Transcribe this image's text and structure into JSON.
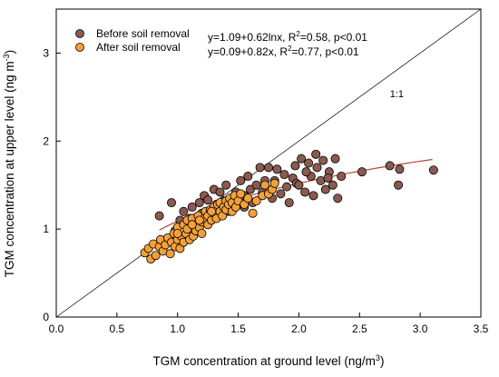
{
  "chart_data": {
    "type": "scatter",
    "xlabel": "TGM concentration at ground level (ng/m",
    "xlabel_sup": "3",
    "xlabel_tail": ")",
    "ylabel": "TGM concentration at upper level (ng m",
    "ylabel_sup": "-3",
    "ylabel_tail": ")",
    "xlim": [
      0,
      3.5
    ],
    "ylim": [
      0,
      3.5
    ],
    "x_ticks": [
      0,
      0.5,
      1,
      1.5,
      2,
      2.5,
      3,
      3.5
    ],
    "x_tick_labels": [
      "0.0",
      "0.5",
      "1.0",
      "1.5",
      "2.0",
      "2.5",
      "3.0",
      "3.5"
    ],
    "y_ticks": [
      0,
      1,
      2,
      3
    ],
    "y_tick_labels": [
      "0",
      "1",
      "2",
      "3"
    ],
    "grid": false,
    "legend_position": "top-left",
    "reference_line": {
      "label": "1:1",
      "label_x": 2.75,
      "label_y": 2.5
    },
    "series": [
      {
        "name": "Before soil removal",
        "color": "#8b5a4f",
        "equation": "y=1.09+0.62lnx,  R",
        "r2_sup": "2",
        "stats": "=0.58, p<0.01",
        "fit": {
          "type": "log",
          "a": 1.09,
          "b": 0.62,
          "x_range": [
            0.85,
            3.1
          ]
        },
        "points": [
          [
            0.85,
            1.15
          ],
          [
            0.95,
            1.3
          ],
          [
            0.98,
            0.98
          ],
          [
            1.02,
            1.1
          ],
          [
            1.05,
            1.2
          ],
          [
            1.08,
            1.05
          ],
          [
            1.1,
            1.12
          ],
          [
            1.12,
            1.25
          ],
          [
            1.15,
            1.1
          ],
          [
            1.18,
            1.3
          ],
          [
            1.2,
            1.18
          ],
          [
            1.22,
            1.38
          ],
          [
            1.25,
            1.1
          ],
          [
            1.28,
            1.22
          ],
          [
            1.3,
            1.45
          ],
          [
            1.32,
            1.28
          ],
          [
            1.35,
            1.15
          ],
          [
            1.38,
            1.32
          ],
          [
            1.4,
            1.5
          ],
          [
            1.42,
            1.2
          ],
          [
            1.45,
            1.35
          ],
          [
            1.48,
            1.42
          ],
          [
            1.5,
            1.28
          ],
          [
            1.52,
            1.55
          ],
          [
            1.55,
            1.38
          ],
          [
            1.58,
            1.6
          ],
          [
            1.6,
            1.45
          ],
          [
            1.62,
            1.3
          ],
          [
            1.65,
            1.5
          ],
          [
            1.7,
            1.42
          ],
          [
            1.75,
            1.7
          ],
          [
            1.78,
            1.35
          ],
          [
            1.8,
            1.55
          ],
          [
            1.82,
            1.68
          ],
          [
            1.85,
            1.4
          ],
          [
            1.88,
            1.62
          ],
          [
            1.9,
            1.48
          ],
          [
            1.92,
            1.3
          ],
          [
            1.95,
            1.58
          ],
          [
            1.98,
            1.52
          ],
          [
            2.0,
            1.5
          ],
          [
            2.02,
            1.8
          ],
          [
            2.05,
            1.42
          ],
          [
            2.08,
            1.75
          ],
          [
            2.1,
            1.6
          ],
          [
            2.12,
            1.38
          ],
          [
            2.15,
            1.7
          ],
          [
            2.18,
            1.55
          ],
          [
            2.2,
            1.78
          ],
          [
            2.22,
            1.45
          ],
          [
            2.25,
            1.65
          ],
          [
            2.28,
            1.5
          ],
          [
            2.3,
            1.8
          ],
          [
            2.32,
            1.35
          ],
          [
            2.35,
            1.6
          ],
          [
            2.52,
            1.65
          ],
          [
            2.75,
            1.72
          ],
          [
            2.82,
            1.5
          ],
          [
            2.83,
            1.68
          ],
          [
            3.11,
            1.67
          ],
          [
            1.68,
            1.7
          ],
          [
            1.72,
            1.55
          ],
          [
            1.97,
            1.72
          ],
          [
            2.06,
            1.65
          ],
          [
            2.14,
            1.85
          ],
          [
            1.45,
            1.25
          ],
          [
            1.35,
            1.42
          ],
          [
            1.25,
            1.33
          ],
          [
            2.24,
            1.58
          ],
          [
            1.55,
            1.25
          ]
        ]
      },
      {
        "name": "After soil removal",
        "color": "#f4a13a",
        "equation": "y=0.09+0.82x,    R",
        "r2_sup": "2",
        "stats": "=0.77, p<0.01",
        "fit": {
          "type": "linear",
          "a": 0.09,
          "b": 0.82,
          "x_range": [
            1.25,
            1.55
          ]
        },
        "points": [
          [
            0.73,
            0.73
          ],
          [
            0.76,
            0.78
          ],
          [
            0.78,
            0.66
          ],
          [
            0.8,
            0.83
          ],
          [
            0.82,
            0.7
          ],
          [
            0.85,
            0.8
          ],
          [
            0.86,
            0.88
          ],
          [
            0.88,
            0.75
          ],
          [
            0.9,
            0.82
          ],
          [
            0.92,
            0.9
          ],
          [
            0.94,
            0.72
          ],
          [
            0.95,
            0.85
          ],
          [
            0.97,
            0.95
          ],
          [
            0.98,
            0.8
          ],
          [
            1.0,
            0.88
          ],
          [
            1.0,
            1.02
          ],
          [
            1.02,
            0.78
          ],
          [
            1.03,
            0.92
          ],
          [
            1.05,
            1.05
          ],
          [
            1.05,
            0.85
          ],
          [
            1.07,
            0.95
          ],
          [
            1.08,
            1.1
          ],
          [
            1.1,
            0.88
          ],
          [
            1.1,
            1.0
          ],
          [
            1.12,
            1.12
          ],
          [
            1.13,
            0.92
          ],
          [
            1.15,
            1.05
          ],
          [
            1.15,
            0.98
          ],
          [
            1.17,
            1.15
          ],
          [
            1.18,
            1.02
          ],
          [
            1.2,
            1.08
          ],
          [
            1.2,
            0.95
          ],
          [
            1.22,
            1.12
          ],
          [
            1.23,
            1.2
          ],
          [
            1.25,
            1.05
          ],
          [
            1.25,
            1.15
          ],
          [
            1.27,
            1.22
          ],
          [
            1.28,
            1.1
          ],
          [
            1.3,
            1.18
          ],
          [
            1.3,
            1.25
          ],
          [
            1.32,
            1.12
          ],
          [
            1.33,
            1.28
          ],
          [
            1.35,
            1.2
          ],
          [
            1.35,
            1.3
          ],
          [
            1.37,
            1.15
          ],
          [
            1.38,
            1.25
          ],
          [
            1.4,
            1.32
          ],
          [
            1.4,
            1.22
          ],
          [
            1.42,
            1.28
          ],
          [
            1.43,
            1.35
          ],
          [
            1.45,
            1.2
          ],
          [
            1.45,
            1.3
          ],
          [
            1.47,
            1.38
          ],
          [
            1.48,
            1.25
          ],
          [
            1.5,
            1.32
          ],
          [
            1.52,
            1.4
          ],
          [
            1.55,
            1.28
          ],
          [
            1.58,
            1.35
          ],
          [
            1.62,
            1.18
          ],
          [
            1.65,
            1.32
          ],
          [
            1.7,
            1.38
          ],
          [
            1.72,
            1.5
          ],
          [
            1.75,
            1.4
          ],
          [
            1.78,
            1.45
          ],
          [
            1.8,
            1.52
          ],
          [
            1.0,
            0.95
          ],
          [
            1.08,
            1.0
          ],
          [
            1.18,
            1.1
          ],
          [
            1.28,
            1.2
          ],
          [
            1.12,
            1.05
          ]
        ]
      }
    ]
  }
}
